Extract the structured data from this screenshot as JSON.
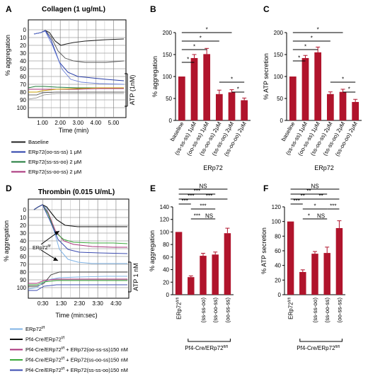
{
  "panels": {
    "A": {
      "letter": "A",
      "title": "Collagen (1 ug/mL)",
      "ylabel": "% aggregation",
      "xlabel": "Time (min)",
      "yticks": [
        "0",
        "10",
        "20",
        "30",
        "40",
        "50",
        "60",
        "70",
        "80",
        "90",
        "100"
      ],
      "xticks": [
        "1.00",
        "2.00",
        "3.00",
        "4.00",
        "5.00"
      ],
      "atp_label": "ATP (1nM)",
      "legend": [
        {
          "text": "Baseline",
          "color": "#222222"
        },
        {
          "text": "ERp72(oo-ss-ss) 1 μM",
          "color": "#2a3fa8"
        },
        {
          "text": "ERp72(ss-ss-oo) 2 μM",
          "color": "#1f7a3a"
        },
        {
          "text": "ERp72(ss-oo-ss) 2 μM",
          "color": "#a8327a"
        }
      ]
    },
    "D": {
      "letter": "D",
      "title": "Thrombin (0.015 U/mL)",
      "ylabel": "% aggregation",
      "xlabel": "Time (min:sec)",
      "yticks": [
        "0",
        "10",
        "20",
        "30",
        "40",
        "50",
        "60",
        "70",
        "80",
        "90",
        "100"
      ],
      "xticks": [
        "0:30",
        "1:30",
        "2:30",
        "3:30",
        "4:30"
      ],
      "atp_label": "ATP 1 nM",
      "annotation": "ERp72",
      "annotation_sup": "f/f",
      "legend": [
        {
          "text": "ERp72",
          "sup": "f/f",
          "suffix": "",
          "color": "#7fb3e6"
        },
        {
          "text": "Pf4-Cre/ERp72",
          "sup": "f/f",
          "suffix": "",
          "color": "#111111"
        },
        {
          "text": "Pf4-Cre/ERp72",
          "sup": "f/f",
          "suffix": " + ERp72(oo-ss-ss)150 nM",
          "color": "#a8327a"
        },
        {
          "text": "Pf4-Cre/ERp72",
          "sup": "f/f",
          "suffix": " + ERp72(ss-oo-ss)150 nM",
          "color": "#3aa83a"
        },
        {
          "text": "Pf4-Cre/ERp72",
          "sup": "f/f",
          "suffix": " + ERp72(ss-ss-oo)150 nM",
          "color": "#3a4ab0"
        }
      ]
    }
  },
  "chart_data": [
    {
      "panel": "B",
      "type": "bar",
      "ylabel": "% aggregation",
      "xlabel": "ERp72",
      "ylim": [
        0,
        200
      ],
      "yticks": [
        0,
        50,
        100,
        150,
        200
      ],
      "categories": [
        "baseline",
        "(ss-ss-ss) 1μM",
        "(oo-ss-ss) 1μM",
        "(ss-oo-ss) 2μM",
        "(ss-ss-oo) 2μM",
        "(ss-oo-oo) 2μM"
      ],
      "values": [
        100,
        142,
        151,
        60,
        64,
        46
      ],
      "errors": [
        0,
        8,
        13,
        9,
        6,
        5
      ],
      "color": "#b0142c",
      "significance": [
        {
          "from": 0,
          "to": 1,
          "label": "*"
        },
        {
          "from": 0,
          "to": 2,
          "label": "*"
        },
        {
          "from": 0,
          "to": 3,
          "label": "*"
        },
        {
          "from": 0,
          "to": 4,
          "label": "*"
        },
        {
          "from": 3,
          "to": 5,
          "label": "*"
        },
        {
          "from": 4,
          "to": 5,
          "label": "*"
        }
      ]
    },
    {
      "panel": "C",
      "type": "bar",
      "ylabel": "% ATP secretion",
      "xlabel": "ERp72",
      "ylim": [
        0,
        200
      ],
      "yticks": [
        0,
        50,
        100,
        150,
        200
      ],
      "categories": [
        "baseline",
        "(ss-ss-ss) 1μM",
        "(oo-ss-ss) 1μM",
        "(ss-oo-ss) 2μM",
        "(ss-ss-oo) 2μM",
        "(ss-oo-oo) 2μM"
      ],
      "values": [
        100,
        142,
        155,
        60,
        65,
        42
      ],
      "errors": [
        0,
        6,
        12,
        5,
        6,
        6
      ],
      "color": "#b0142c",
      "significance": [
        {
          "from": 0,
          "to": 1,
          "label": "*"
        },
        {
          "from": 0,
          "to": 2,
          "label": "*"
        },
        {
          "from": 0,
          "to": 3,
          "label": "*"
        },
        {
          "from": 0,
          "to": 4,
          "label": "*"
        },
        {
          "from": 3,
          "to": 5,
          "label": "*"
        },
        {
          "from": 4,
          "to": 5,
          "label": "*"
        }
      ]
    },
    {
      "panel": "E",
      "type": "bar",
      "ylabel": "% aggregation",
      "group_label": "Pf4-Cre/ERp72",
      "group_sup": "fl/fl",
      "first_label": "ERp72",
      "first_sup": "fl/fl",
      "ylim": [
        0,
        140
      ],
      "yticks": [
        0,
        20,
        40,
        60,
        80,
        100,
        120,
        140
      ],
      "categories": [
        "ERp72fl/fl",
        "",
        "(ss-ss-oo)",
        "(ss-oo-ss)",
        "(oo-ss-ss)"
      ],
      "values": [
        100,
        28,
        62,
        64,
        98
      ],
      "errors": [
        0,
        2,
        4,
        4,
        8
      ],
      "color": "#b0142c",
      "significance": [
        {
          "from": 0,
          "to": 1,
          "label": "***",
          "level": 4
        },
        {
          "from": 0,
          "to": 2,
          "label": "***",
          "level": 5
        },
        {
          "from": 0,
          "to": 3,
          "label": "***",
          "level": 6
        },
        {
          "from": 0,
          "to": 4,
          "label": "NS",
          "level": 7
        },
        {
          "from": 1,
          "to": 2,
          "label": "***",
          "level": 1
        },
        {
          "from": 1,
          "to": 3,
          "label": "***",
          "level": 3
        },
        {
          "from": 1,
          "to": 4,
          "label": "***",
          "level": 5
        },
        {
          "from": 2,
          "to": 3,
          "label": "NS",
          "level": 1
        }
      ]
    },
    {
      "panel": "F",
      "type": "bar",
      "ylabel": "% ATP secretion",
      "group_label": "Pf4-Cre/ERp72",
      "group_sup": "fl/fl",
      "first_label": "ERp72",
      "first_sup": "fl/fl",
      "ylim": [
        0,
        120
      ],
      "yticks": [
        0,
        20,
        40,
        60,
        80,
        100,
        120
      ],
      "categories": [
        "ERp72fl/fl",
        "",
        "(ss-ss-oo)",
        "(ss-oo-ss)",
        "(oo-ss-ss)"
      ],
      "values": [
        100,
        31,
        56,
        57,
        91
      ],
      "errors": [
        0,
        3,
        3,
        8,
        10
      ],
      "color": "#b0142c",
      "significance": [
        {
          "from": 0,
          "to": 1,
          "label": "***",
          "level": 4
        },
        {
          "from": 0,
          "to": 2,
          "label": "**",
          "level": 5
        },
        {
          "from": 0,
          "to": 3,
          "label": "**",
          "level": 6
        },
        {
          "from": 0,
          "to": 4,
          "label": "NS",
          "level": 7
        },
        {
          "from": 1,
          "to": 2,
          "label": "*",
          "level": 1
        },
        {
          "from": 1,
          "to": 3,
          "label": "*",
          "level": 3
        },
        {
          "from": 1,
          "to": 4,
          "label": "**",
          "level": 5
        },
        {
          "from": 2,
          "to": 3,
          "label": "NS",
          "level": 1
        },
        {
          "from": 3,
          "to": 4,
          "label": "***",
          "level": 3
        }
      ]
    }
  ]
}
